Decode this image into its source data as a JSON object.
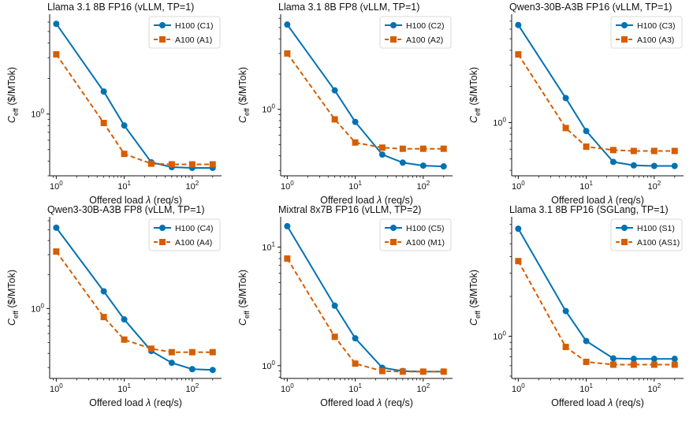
{
  "chart_data": [
    {
      "type": "line",
      "title": "Llama 3.1 8B FP16  (vLLM, TP=1)",
      "xlabel": "Offered load λ (req/s)",
      "ylabel": "C_eff ($/MTok)",
      "xscale": "log",
      "yscale": "log",
      "xlim": [
        0.8,
        270
      ],
      "ylim": [
        0.3,
        7.0
      ],
      "yticks": [
        1
      ],
      "x": [
        1,
        5,
        10,
        25,
        50,
        100,
        200
      ],
      "legend": "top-right",
      "series": [
        {
          "name": "H100 (C1)",
          "color": "#0072B2",
          "marker": "circle",
          "dash": "solid",
          "values": [
            5.8,
            1.55,
            0.8,
            0.39,
            0.355,
            0.35,
            0.35
          ]
        },
        {
          "name": "A100 (A1)",
          "color": "#D55E00",
          "marker": "square",
          "dash": "dashed",
          "values": [
            3.2,
            0.84,
            0.46,
            0.38,
            0.375,
            0.375,
            0.375
          ]
        }
      ]
    },
    {
      "type": "line",
      "title": "Llama 3.1 8B FP8  (vLLM, TP=1)",
      "xlabel": "Offered load λ (req/s)",
      "ylabel": "C_eff ($/MTok)",
      "xscale": "log",
      "yscale": "log",
      "xlim": [
        0.8,
        270
      ],
      "ylim": [
        0.27,
        6.5
      ],
      "yticks": [
        1
      ],
      "x": [
        1,
        5,
        10,
        25,
        50,
        100,
        200
      ],
      "legend": "top-right",
      "series": [
        {
          "name": "H100 (C2)",
          "color": "#0072B2",
          "marker": "circle",
          "dash": "solid",
          "values": [
            5.3,
            1.45,
            0.78,
            0.41,
            0.35,
            0.33,
            0.325
          ]
        },
        {
          "name": "A100 (A2)",
          "color": "#D55E00",
          "marker": "square",
          "dash": "dashed",
          "values": [
            3.0,
            0.82,
            0.52,
            0.47,
            0.46,
            0.46,
            0.46
          ]
        }
      ]
    },
    {
      "type": "line",
      "title": "Qwen3-30B-A3B FP16  (vLLM, TP=1)",
      "xlabel": "Offered load λ (req/s)",
      "ylabel": "C_eff ($/MTok)",
      "xscale": "log",
      "yscale": "log",
      "xlim": [
        0.8,
        270
      ],
      "ylim": [
        0.36,
        8.0
      ],
      "yticks": [
        1
      ],
      "x": [
        1,
        5,
        10,
        25,
        50,
        100,
        200
      ],
      "legend": "top-right",
      "series": [
        {
          "name": "H100 (C3)",
          "color": "#0072B2",
          "marker": "circle",
          "dash": "solid",
          "values": [
            6.5,
            1.6,
            0.85,
            0.47,
            0.44,
            0.435,
            0.435
          ]
        },
        {
          "name": "A100 (A3)",
          "color": "#D55E00",
          "marker": "square",
          "dash": "dashed",
          "values": [
            3.7,
            0.9,
            0.63,
            0.59,
            0.58,
            0.58,
            0.58
          ]
        }
      ]
    },
    {
      "type": "line",
      "title": "Qwen3-30B-A3B FP8  (vLLM, TP=1)",
      "xlabel": "Offered load λ (req/s)",
      "ylabel": "C_eff ($/MTok)",
      "xscale": "log",
      "yscale": "log",
      "xlim": [
        0.8,
        270
      ],
      "ylim": [
        0.24,
        6.5
      ],
      "yticks": [
        1
      ],
      "x": [
        1,
        5,
        10,
        25,
        50,
        100,
        200
      ],
      "legend": "top-right",
      "series": [
        {
          "name": "H100 (C4)",
          "color": "#0072B2",
          "marker": "circle",
          "dash": "solid",
          "values": [
            5.2,
            1.42,
            0.8,
            0.42,
            0.33,
            0.29,
            0.285
          ]
        },
        {
          "name": "A100 (A4)",
          "color": "#D55E00",
          "marker": "square",
          "dash": "dashed",
          "values": [
            3.2,
            0.84,
            0.53,
            0.44,
            0.41,
            0.41,
            0.41
          ]
        }
      ]
    },
    {
      "type": "line",
      "title": "Mixtral 8x7B FP16  (vLLM, TP=2)",
      "xlabel": "Offered load λ (req/s)",
      "ylabel": "C_eff ($/MTok)",
      "xscale": "log",
      "yscale": "log",
      "xlim": [
        0.8,
        270
      ],
      "ylim": [
        0.78,
        18.0
      ],
      "yticks": [
        1,
        10
      ],
      "x": [
        1,
        5,
        10,
        25,
        50,
        100,
        200
      ],
      "legend": "top-right",
      "series": [
        {
          "name": "H100 (C5)",
          "color": "#0072B2",
          "marker": "circle",
          "dash": "solid",
          "values": [
            15.0,
            3.2,
            1.7,
            0.96,
            0.9,
            0.89,
            0.89
          ]
        },
        {
          "name": "A100 (M1)",
          "color": "#D55E00",
          "marker": "square",
          "dash": "dashed",
          "values": [
            8.0,
            1.75,
            1.04,
            0.9,
            0.89,
            0.89,
            0.89
          ]
        }
      ]
    },
    {
      "type": "line",
      "title": "Llama 3.1 8B FP16  (SGLang, TP=1)",
      "xlabel": "Offered load λ (req/s)",
      "ylabel": "C_eff ($/MTok)",
      "xscale": "log",
      "yscale": "log",
      "xlim": [
        0.8,
        270
      ],
      "ylim": [
        0.48,
        8.0
      ],
      "yticks": [
        1
      ],
      "x": [
        1,
        5,
        10,
        25,
        50,
        100,
        200
      ],
      "legend": "top-right",
      "series": [
        {
          "name": "H100 (S1)",
          "color": "#0072B2",
          "marker": "circle",
          "dash": "solid",
          "values": [
            6.5,
            1.55,
            0.92,
            0.68,
            0.675,
            0.675,
            0.675
          ]
        },
        {
          "name": "A100 (AS1)",
          "color": "#D55E00",
          "marker": "square",
          "dash": "dashed",
          "values": [
            3.7,
            0.83,
            0.64,
            0.61,
            0.61,
            0.61,
            0.61
          ]
        }
      ]
    }
  ]
}
